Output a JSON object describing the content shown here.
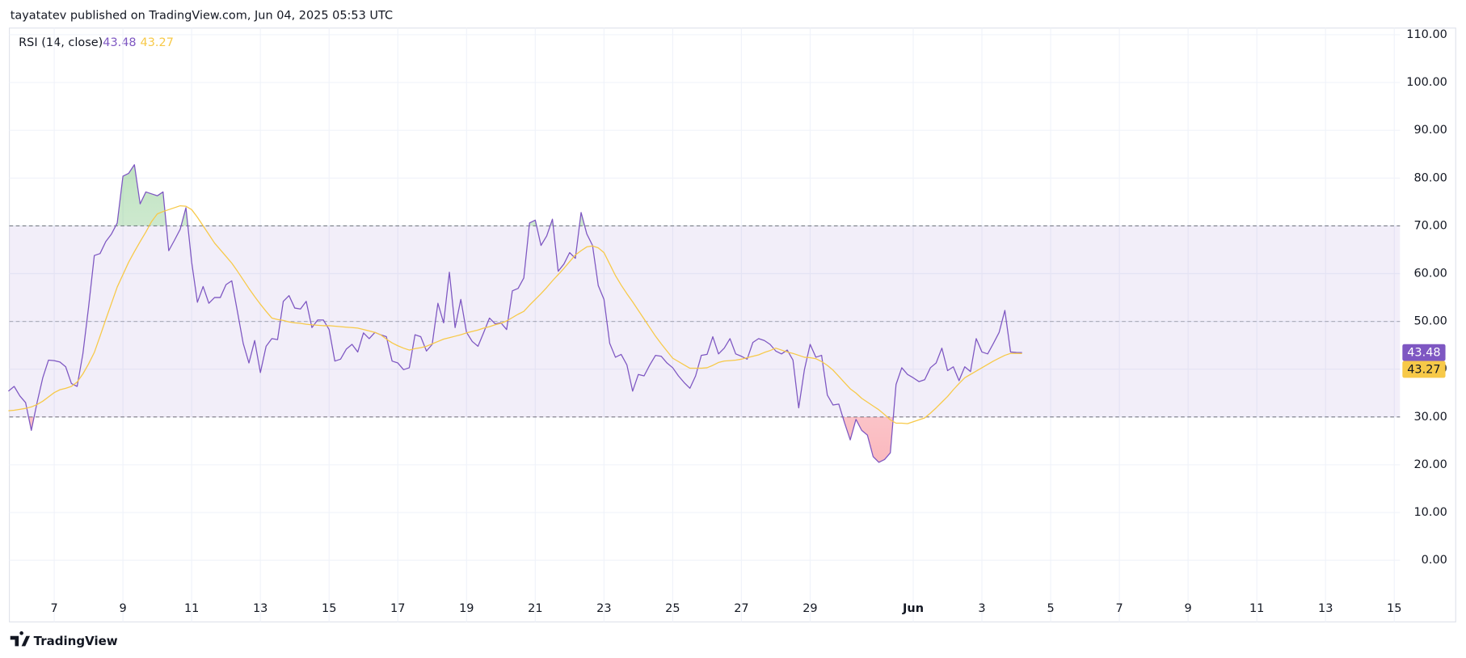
{
  "header": {
    "attribution": "tayatatev published on TradingView.com, Jun 04, 2025 05:53 UTC"
  },
  "footer": {
    "brand": "TradingView"
  },
  "chart_data": {
    "type": "line",
    "title": "RSI (14, close)",
    "xlim": [
      0,
      243
    ],
    "xticks": [
      {
        "value": 8,
        "label": "7"
      },
      {
        "value": 20,
        "label": "9"
      },
      {
        "value": 32,
        "label": "11"
      },
      {
        "value": 44,
        "label": "13"
      },
      {
        "value": 56,
        "label": "15"
      },
      {
        "value": 68,
        "label": "17"
      },
      {
        "value": 80,
        "label": "19"
      },
      {
        "value": 92,
        "label": "21"
      },
      {
        "value": 104,
        "label": "23"
      },
      {
        "value": 116,
        "label": "25"
      },
      {
        "value": 128,
        "label": "27"
      },
      {
        "value": 140,
        "label": "29"
      },
      {
        "value": 158,
        "label": "Jun"
      },
      {
        "value": 170,
        "label": "3"
      },
      {
        "value": 182,
        "label": "5"
      },
      {
        "value": 194,
        "label": "7"
      },
      {
        "value": 206,
        "label": "9"
      },
      {
        "value": 218,
        "label": "11"
      },
      {
        "value": 230,
        "label": "13"
      },
      {
        "value": 242,
        "label": "15"
      }
    ],
    "ylim": [
      -8,
      111.4
    ],
    "yticks": [
      {
        "value": 0,
        "label": "0.00"
      },
      {
        "value": 10,
        "label": "10.00"
      },
      {
        "value": 20,
        "label": "20.00"
      },
      {
        "value": 30,
        "label": "30.00"
      },
      {
        "value": 40,
        "label": "40.00"
      },
      {
        "value": 50,
        "label": "50.00"
      },
      {
        "value": 60,
        "label": "60.00"
      },
      {
        "value": 70,
        "label": "70.00"
      },
      {
        "value": 80,
        "label": "80.00"
      },
      {
        "value": 90,
        "label": "90.00"
      },
      {
        "value": 100,
        "label": "100.00"
      },
      {
        "value": 110,
        "label": "110.00"
      }
    ],
    "grid": true,
    "bands": {
      "upper": 70,
      "middle": 50,
      "lower": 30,
      "color": "#7e57c2"
    },
    "series": [
      {
        "color": "#7e57c2",
        "values": [
          35.4,
          36.4,
          34.4,
          33,
          27.2,
          33,
          38.2,
          41.9,
          41.8,
          41.5,
          40.5,
          37,
          36.4,
          43.2,
          53,
          63.8,
          64.2,
          66.7,
          68.3,
          70.6,
          80.4,
          81,
          82.8,
          74.6,
          77.1,
          76.7,
          76.3,
          77.1,
          64.8,
          67,
          69.3,
          73.8,
          62.4,
          54,
          57.3,
          53.8,
          55,
          55,
          57.7,
          58.5,
          52,
          45.4,
          41.3,
          46,
          39.3,
          44.8,
          46.4,
          46.2,
          54.2,
          55.4,
          52.8,
          52.6,
          54.2,
          48.7,
          50.3,
          50.3,
          48.3,
          41.7,
          42.1,
          44.2,
          45.2,
          43.6,
          47.6,
          46.4,
          47.7,
          47.2,
          46.8,
          41.7,
          41.3,
          39.9,
          40.3,
          47.2,
          46.8,
          43.8,
          45.2,
          53.8,
          49.7,
          60.3,
          48.7,
          54.6,
          47.7,
          45.8,
          44.8,
          47.7,
          50.7,
          49.5,
          49.7,
          48.3,
          56.4,
          56.9,
          59.1,
          70.6,
          71.2,
          65.9,
          67.9,
          71.4,
          60.5,
          62,
          64.4,
          63.2,
          72.8,
          68.3,
          65.9,
          57.5,
          54.6,
          45.4,
          42.5,
          43.1,
          40.9,
          35.4,
          38.9,
          38.6,
          40.9,
          42.9,
          42.7,
          41.3,
          40.3,
          38.6,
          37.2,
          36,
          38.6,
          42.9,
          43.1,
          46.8,
          43.2,
          44.4,
          46.4,
          43.2,
          42.7,
          42.1,
          45.6,
          46.4,
          46,
          45.2,
          43.8,
          43.2,
          44,
          41.9,
          31.9,
          39.9,
          45.2,
          42.5,
          42.9,
          34.6,
          32.5,
          32.7,
          28.8,
          25.2,
          29.5,
          27.2,
          26.2,
          21.7,
          20.5,
          21.1,
          22.5,
          36.8,
          40.3,
          38.9,
          38.2,
          37.4,
          37.8,
          40.3,
          41.3,
          44.4,
          39.7,
          40.5,
          37.6,
          40.5,
          39.5,
          46.4,
          43.6,
          43.2,
          45.4,
          47.7,
          52.3,
          43.6,
          43.5,
          43.48
        ]
      },
      {
        "color": "#f7c948",
        "values": [
          31.3,
          31.4,
          31.6,
          31.8,
          32.1,
          32.6,
          33.3,
          34.2,
          35.1,
          35.7,
          36,
          36.4,
          37.3,
          39,
          41.1,
          43.5,
          46.9,
          50.4,
          53.8,
          57.2,
          59.8,
          62.4,
          64.6,
          66.7,
          68.7,
          70.9,
          72.5,
          73,
          73.4,
          73.8,
          74.2,
          74.1,
          73.4,
          71.8,
          70,
          68.2,
          66.4,
          65,
          63.6,
          62.2,
          60.5,
          58.7,
          56.9,
          55.2,
          53.6,
          52.1,
          50.7,
          50.4,
          50.2,
          49.9,
          49.7,
          49.6,
          49.4,
          49.3,
          49.2,
          49.1,
          49.1,
          49,
          48.9,
          48.8,
          48.7,
          48.6,
          48.3,
          48,
          47.7,
          47.2,
          46.3,
          45.5,
          44.9,
          44.4,
          44,
          44.3,
          44.5,
          44.8,
          45.3,
          45.8,
          46.3,
          46.6,
          46.9,
          47.2,
          47.6,
          47.9,
          48.2,
          48.6,
          48.9,
          49.3,
          49.6,
          50.1,
          50.8,
          51.5,
          52.1,
          53.4,
          54.6,
          55.8,
          57.1,
          58.5,
          59.8,
          61.1,
          62.5,
          63.9,
          64.8,
          65.6,
          65.8,
          65.4,
          64.4,
          62,
          59.6,
          57.6,
          55.8,
          54.1,
          52.3,
          50.5,
          48.7,
          46.9,
          45.3,
          43.8,
          42.3,
          41.6,
          40.9,
          40.2,
          40.2,
          40.2,
          40.3,
          40.8,
          41.4,
          41.7,
          41.8,
          41.9,
          42.1,
          42.4,
          42.7,
          43,
          43.5,
          43.9,
          44.4,
          44,
          43.6,
          43.3,
          42.9,
          42.5,
          42.4,
          42.2,
          41.6,
          40.8,
          39.8,
          38.5,
          37.2,
          35.9,
          35,
          33.9,
          33.1,
          32.3,
          31.5,
          30.5,
          29.4,
          28.7,
          28.7,
          28.6,
          29,
          29.4,
          29.8,
          30.8,
          31.9,
          33.1,
          34.3,
          35.7,
          37,
          38.2,
          38.9,
          39.6,
          40.3,
          41,
          41.7,
          42.3,
          42.9,
          43.3,
          43.3,
          43.27
        ]
      }
    ]
  }
}
